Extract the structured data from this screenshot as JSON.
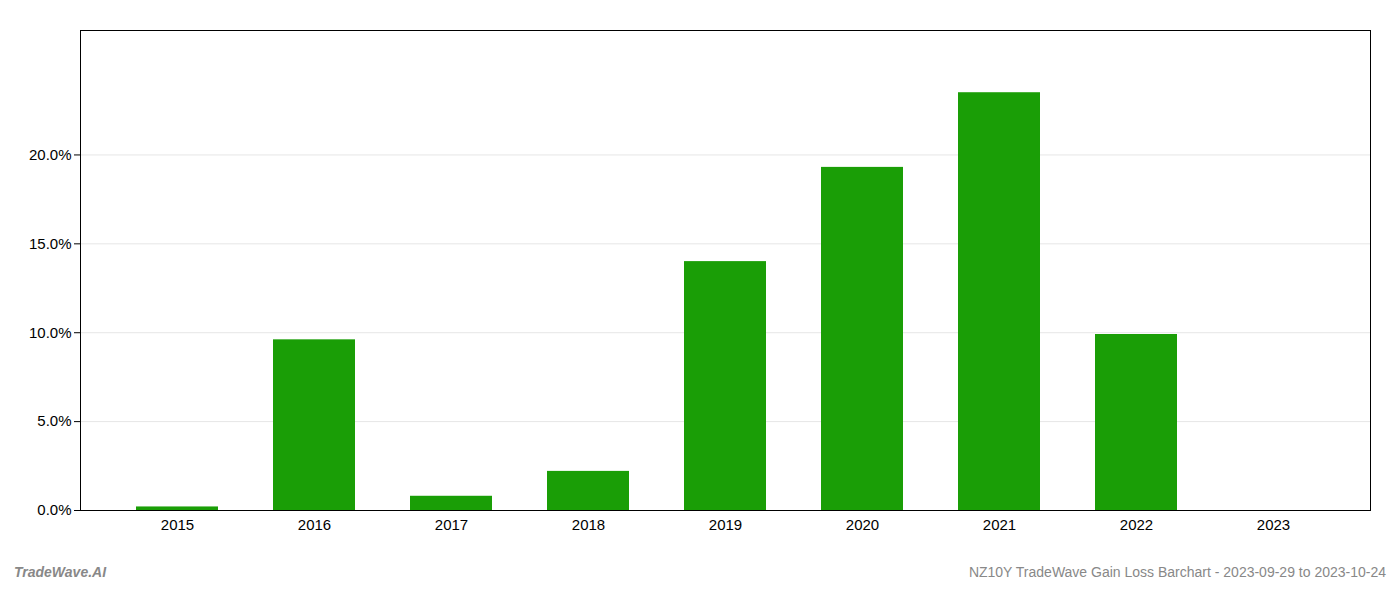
{
  "chart_data": {
    "type": "bar",
    "categories": [
      "2015",
      "2016",
      "2017",
      "2018",
      "2019",
      "2020",
      "2021",
      "2022",
      "2023"
    ],
    "values": [
      0.002,
      0.096,
      0.008,
      0.022,
      0.14,
      0.193,
      0.235,
      0.099,
      0.0
    ],
    "color": "#1a9e06",
    "ylim": [
      0,
      0.27
    ],
    "yticks": [
      {
        "value": 0.0,
        "label": "0.0%"
      },
      {
        "value": 0.05,
        "label": "5.0%"
      },
      {
        "value": 0.1,
        "label": "10.0%"
      },
      {
        "value": 0.15,
        "label": "15.0%"
      },
      {
        "value": 0.2,
        "label": "20.0%"
      }
    ],
    "grid": true,
    "annotations": [
      "TradeWave.AI",
      "NZ10Y TradeWave Gain Loss Barchart - 2023-09-29 to 2023-10-24"
    ]
  }
}
